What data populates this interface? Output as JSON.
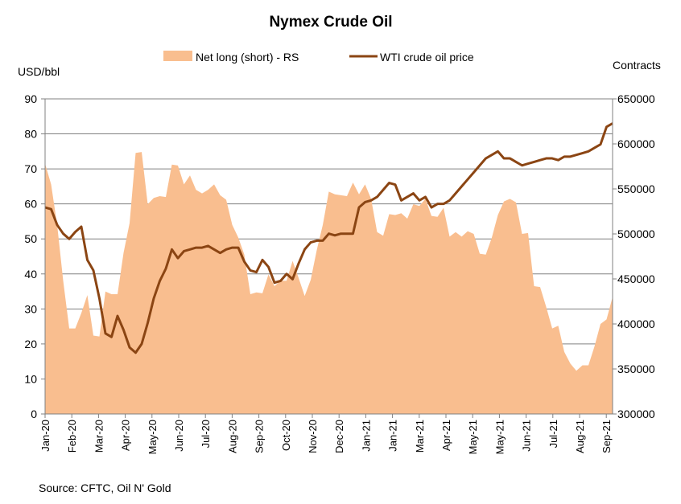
{
  "chart_data": {
    "type": "area+line",
    "title": "Nymex Crude Oil",
    "left_axis_label": "USD/bbl",
    "right_axis_label": "Contracts",
    "source": "Source: CFTC, Oil N' Gold",
    "legend": [
      "Net long (short) - RS",
      "WTI crude oil price"
    ],
    "left_ylim": [
      0,
      90
    ],
    "left_ticks": [
      "0",
      "10",
      "20",
      "30",
      "40",
      "50",
      "60",
      "70",
      "80",
      "90"
    ],
    "right_ylim": [
      300000,
      650000
    ],
    "right_ticks": [
      "300000",
      "350000",
      "400000",
      "450000",
      "500000",
      "550000",
      "600000",
      "650000"
    ],
    "x_tick_labels": [
      "Jan-20",
      "Feb-20",
      "Mar-20",
      "Apr-20",
      "May-20",
      "Jun-20",
      "Jul-20",
      "Aug-20",
      "Sep-20",
      "Oct-20",
      "Nov-20",
      "Dec-20",
      "Jan-21",
      "Jan-21",
      "Mar-21",
      "Apr-21",
      "May-21",
      "May-21",
      "Jun-21",
      "Jul-21",
      "Aug-21",
      "Sep-21"
    ],
    "colors": {
      "area": "#f9be8f",
      "line": "#8b4513",
      "grid": "#808080"
    },
    "series": [
      {
        "name": "Net long (short) - RS",
        "axis": "right",
        "kind": "area",
        "values": [
          578000,
          555000,
          510000,
          448000,
          395000,
          395000,
          412000,
          432000,
          387000,
          386000,
          436000,
          433000,
          433000,
          479000,
          512000,
          590000,
          591000,
          533000,
          540000,
          542000,
          541000,
          577000,
          576000,
          555000,
          565000,
          549000,
          545000,
          549000,
          555000,
          543000,
          538000,
          510000,
          496000,
          477000,
          433000,
          435000,
          434000,
          455000,
          442000,
          448000,
          448000,
          470000,
          451000,
          431000,
          449000,
          482000,
          510000,
          547000,
          544000,
          543000,
          542000,
          557000,
          544000,
          555000,
          539000,
          502000,
          498000,
          522000,
          521000,
          523000,
          517000,
          533000,
          531000,
          539000,
          520000,
          519000,
          529000,
          497000,
          502000,
          497000,
          503000,
          500000,
          478000,
          477000,
          496000,
          521000,
          536000,
          539000,
          535000,
          500000,
          501000,
          442000,
          441000,
          419000,
          395000,
          398000,
          369000,
          356000,
          348000,
          354000,
          354000,
          375000,
          400000,
          405000,
          430000
        ]
      },
      {
        "name": "WTI crude oil price",
        "axis": "left",
        "kind": "line",
        "values": [
          59,
          58.5,
          54,
          51.5,
          50,
          52,
          53.5,
          44,
          41,
          33,
          23,
          22,
          28,
          24,
          19,
          17.5,
          20,
          26,
          33,
          38,
          41.5,
          47,
          44.5,
          46.5,
          47,
          47.5,
          47.5,
          48,
          47,
          46,
          47,
          47.5,
          47.5,
          43.5,
          41,
          40.5,
          44,
          42,
          37.5,
          38,
          40,
          38.5,
          43,
          47,
          49,
          49.5,
          49.5,
          51.5,
          51,
          51.5,
          51.5,
          51.5,
          59,
          60.5,
          61,
          62,
          64,
          66,
          65.5,
          61,
          62,
          63,
          61,
          62,
          59,
          60,
          60,
          61,
          63,
          65,
          67,
          69,
          71,
          73,
          74,
          75,
          73,
          73,
          72,
          71,
          71.5,
          72,
          72.5,
          73,
          73,
          72.5,
          73.5,
          73.5,
          74,
          74.5,
          75,
          76,
          77,
          82,
          83
        ]
      }
    ]
  }
}
